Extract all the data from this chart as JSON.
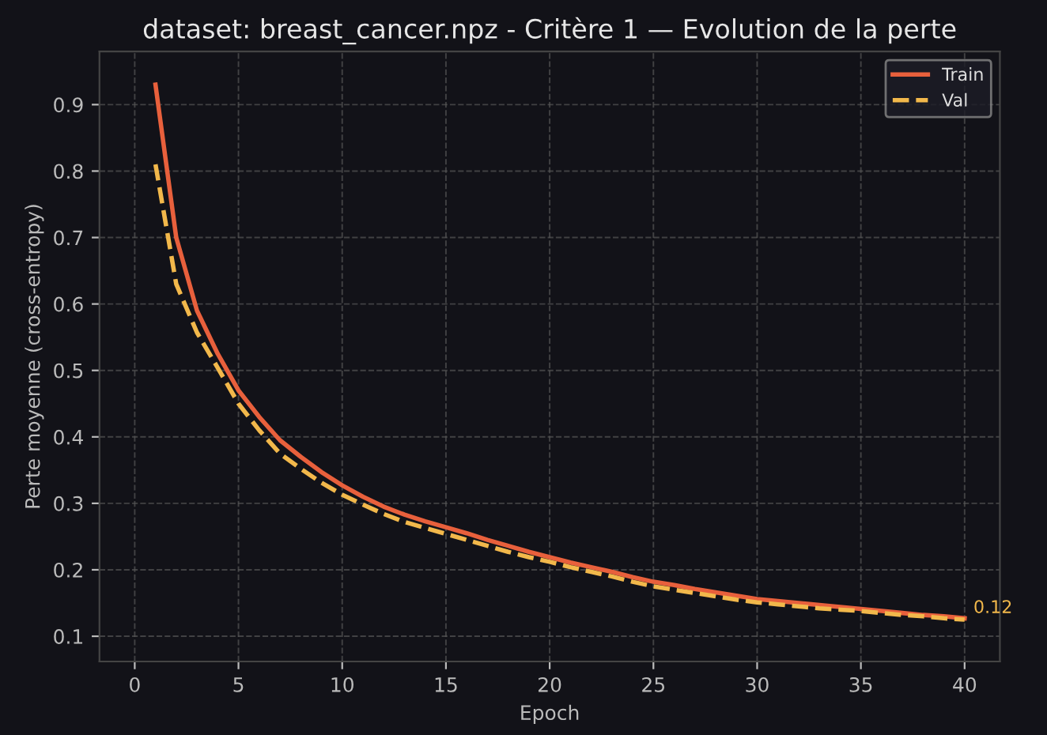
{
  "chart_data": {
    "type": "line",
    "title": "dataset: breast_cancer.npz - Critère 1 — Evolution de la perte",
    "xlabel": "Epoch",
    "ylabel": "Perte moyenne (cross-entropy)",
    "x": [
      1,
      2,
      3,
      4,
      5,
      6,
      7,
      8,
      9,
      10,
      11,
      12,
      13,
      14,
      15,
      16,
      17,
      18,
      19,
      20,
      21,
      22,
      23,
      24,
      25,
      26,
      27,
      28,
      29,
      30,
      31,
      32,
      33,
      34,
      35,
      36,
      37,
      38,
      39,
      40
    ],
    "series": [
      {
        "name": "Train",
        "color": "#e8603c",
        "line_style": "solid",
        "values": [
          0.93,
          0.7,
          0.59,
          0.525,
          0.47,
          0.43,
          0.395,
          0.37,
          0.347,
          0.327,
          0.31,
          0.295,
          0.283,
          0.273,
          0.264,
          0.255,
          0.245,
          0.236,
          0.227,
          0.219,
          0.211,
          0.204,
          0.197,
          0.189,
          0.182,
          0.177,
          0.171,
          0.166,
          0.161,
          0.156,
          0.153,
          0.15,
          0.147,
          0.144,
          0.141,
          0.138,
          0.135,
          0.132,
          0.13,
          0.127
        ]
      },
      {
        "name": "Val",
        "color": "#f2b84b",
        "line_style": "dashed",
        "values": [
          0.81,
          0.63,
          0.557,
          0.504,
          0.45,
          0.41,
          0.375,
          0.352,
          0.331,
          0.313,
          0.298,
          0.284,
          0.272,
          0.263,
          0.254,
          0.245,
          0.236,
          0.227,
          0.219,
          0.212,
          0.204,
          0.197,
          0.19,
          0.182,
          0.175,
          0.17,
          0.165,
          0.16,
          0.155,
          0.151,
          0.148,
          0.145,
          0.142,
          0.14,
          0.138,
          0.135,
          0.132,
          0.13,
          0.127,
          0.125
        ]
      }
    ],
    "annotations": [
      {
        "text": "0.12",
        "x": 40,
        "y": 0.125
      }
    ],
    "xlim": [
      -1.7,
      41.7
    ],
    "ylim": [
      0.062,
      0.98
    ],
    "xticks": [
      0,
      5,
      10,
      15,
      20,
      25,
      30,
      35,
      40
    ],
    "yticks": [
      0.1,
      0.2,
      0.3,
      0.4,
      0.5,
      0.6,
      0.7,
      0.8,
      0.9
    ],
    "grid": true,
    "legend": "top right",
    "marker": "none"
  }
}
